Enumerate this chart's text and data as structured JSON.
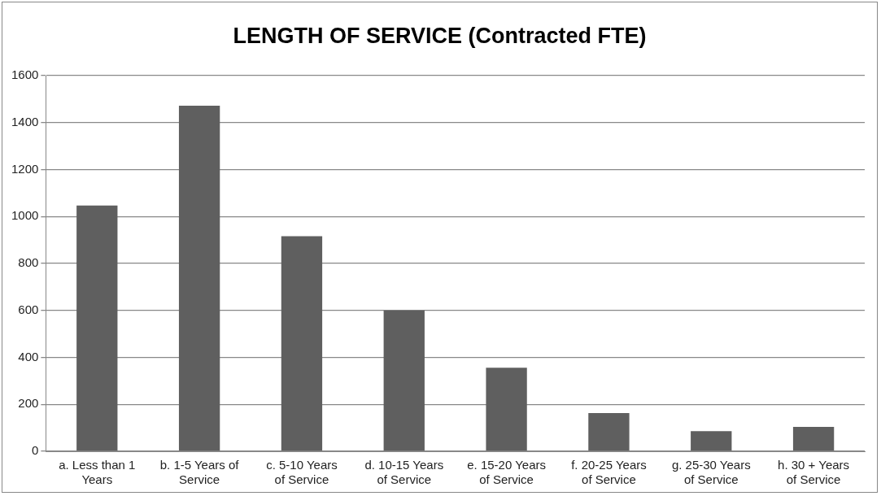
{
  "chart_data": {
    "type": "bar",
    "title": "LENGTH OF SERVICE (Contracted FTE)",
    "categories": [
      "a. Less than 1 Years",
      "b. 1-5 Years of Service",
      "c. 5-10 Years of Service",
      "d. 10-15 Years of Service",
      "e. 15-20 Years of Service",
      "f. 20-25 Years of Service",
      "g. 25-30 Years of Service",
      "h. 30 + Years of Service"
    ],
    "values": [
      1047,
      1472,
      916,
      600,
      356,
      163,
      86,
      104
    ],
    "color": "#5f5f5f",
    "ylim": [
      0,
      1600
    ],
    "yticks": [
      0,
      200,
      400,
      600,
      800,
      1000,
      1200,
      1400,
      1600
    ],
    "grid": "y",
    "legend": false
  }
}
